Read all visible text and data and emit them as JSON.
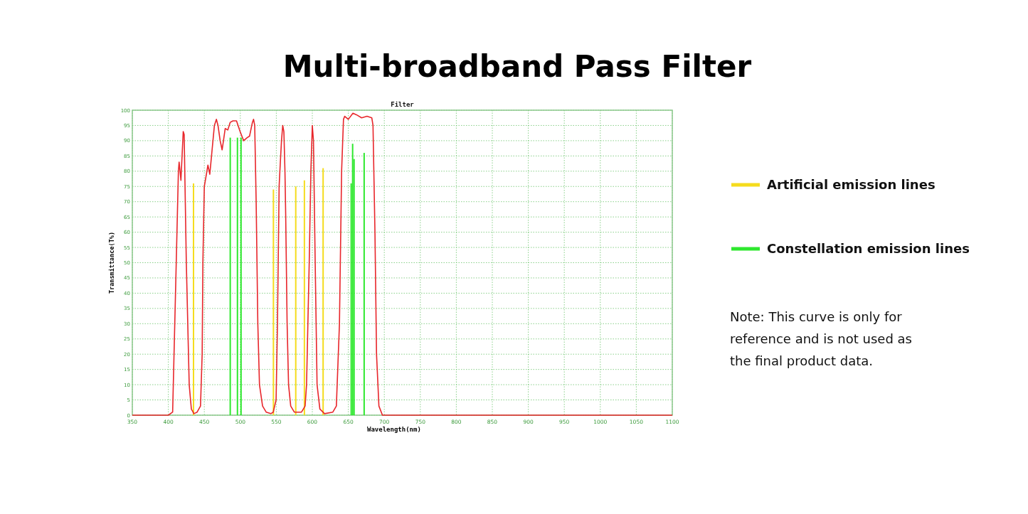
{
  "chart_data": {
    "type": "line",
    "title": "Multi-broadband Pass Filter",
    "subtitle": "Filter",
    "xlabel": "Wavelength(nm)",
    "ylabel": "Transmittance(T%)",
    "xlim": [
      350,
      1100
    ],
    "xticks": [
      350,
      400,
      450,
      500,
      550,
      600,
      650,
      700,
      750,
      800,
      850,
      900,
      950,
      1000,
      1050,
      1100
    ],
    "ylim": [
      0,
      100
    ],
    "yticks": [
      0,
      5,
      10,
      15,
      20,
      25,
      30,
      35,
      40,
      45,
      50,
      55,
      60,
      65,
      70,
      75,
      80,
      85,
      90,
      95,
      100
    ],
    "grid": true,
    "legend": "right",
    "line_style": "solid",
    "marker": "none",
    "annotations": [
      "Note: This curve is only for reference and is not used as the final product data."
    ],
    "series": [
      {
        "color": "#e8262b",
        "x": [
          350,
          400,
          406,
          411,
          414,
          415,
          417.5,
          420.7,
          422,
          425,
          429,
          432,
          435.5,
          440,
          444.7,
          447,
          448,
          450,
          453.6,
          455,
          457.6,
          460,
          464,
          466.8,
          469,
          472,
          474.7,
          476.6,
          479,
          482.6,
          485.9,
          489.8,
          494.7,
          499.7,
          504.6,
          509.5,
          512.8,
          516.8,
          518.4,
          520,
          522,
          524.3,
          526.6,
          530.9,
          535.9,
          542.4,
          545.7,
          549.7,
          551.6,
          553.9,
          555.6,
          557.2,
          558.9,
          560.5,
          562,
          563,
          565,
          567,
          570,
          575,
          585,
          590,
          592,
          595.7,
          598,
          600,
          601.6,
          604,
          606.6,
          610.5,
          617,
          628.5,
          633.4,
          637.7,
          640.7,
          643.3,
          645,
          650,
          656.4,
          661.3,
          668.5,
          676,
          682.6,
          684.3,
          687,
          689.2,
          692.5,
          697.4,
          750,
          1100
        ],
        "values": [
          0,
          0,
          1,
          50,
          80,
          83,
          77,
          93,
          92,
          50,
          10,
          2,
          0.5,
          1,
          3,
          20,
          50,
          75,
          80,
          82,
          79,
          85,
          95,
          97,
          95,
          90,
          87,
          90,
          94,
          93.5,
          96,
          96.5,
          96.5,
          93,
          90,
          91,
          91.5,
          96,
          97,
          95,
          70,
          30,
          10,
          3,
          1,
          0.5,
          1,
          5,
          30,
          75,
          83,
          90,
          95,
          93,
          80,
          66,
          30,
          10,
          3,
          1,
          1,
          3,
          10,
          50,
          80,
          95,
          90,
          50,
          10,
          2,
          0.5,
          1,
          3,
          30,
          80,
          97,
          98,
          97,
          99,
          98.5,
          97.5,
          98,
          97.5,
          95,
          60,
          20,
          3,
          0,
          0,
          0
        ]
      },
      {
        "type": "bar",
        "name": "Artificial emission lines",
        "color": "#f5dc1e",
        "x": [
          435,
          546,
          577,
          589,
          615
        ],
        "values": [
          76,
          74,
          75,
          77,
          81
        ]
      },
      {
        "type": "bar",
        "name": "Constellation emission lines",
        "color": "#2ee82e",
        "x": [
          486,
          496,
          501,
          654,
          656,
          658,
          672
        ],
        "values": [
          91,
          91,
          91,
          76,
          89,
          84,
          86
        ]
      }
    ]
  }
}
